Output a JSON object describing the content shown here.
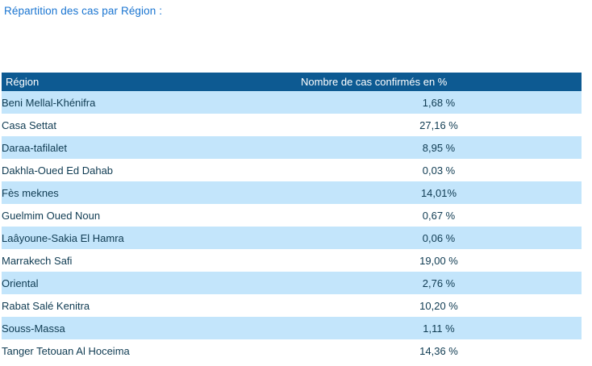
{
  "page": {
    "title": "Répartition des cas par Région :"
  },
  "colors": {
    "title_text": "#1a75d1",
    "header_bg": "#0d5a92",
    "header_text": "#ffffff",
    "row_alt_bg": "#c3e5fb",
    "row_bg": "#ffffff",
    "row_text": "#0f3b52"
  },
  "chart_data": {
    "type": "table",
    "title": "Répartition des cas par Région :",
    "columns": [
      "Région",
      "Nombre de cas confirmés en %"
    ],
    "rows": [
      [
        "Beni Mellal-Khénifra",
        "1,68 %"
      ],
      [
        "Casa Settat",
        "27,16 %"
      ],
      [
        "Daraa-tafilalet",
        "8,95 %"
      ],
      [
        "Dakhla-Oued Ed Dahab",
        "0,03 %"
      ],
      [
        "Fès meknes",
        "14,01%"
      ],
      [
        "Guelmim Oued Noun",
        "0,67 %"
      ],
      [
        "Laâyoune-Sakia El Hamra",
        "0,06 %"
      ],
      [
        "Marrakech Safi",
        "19,00 %"
      ],
      [
        "Oriental",
        "2,76 %"
      ],
      [
        "Rabat Salé Kenitra",
        "10,20 %"
      ],
      [
        "Souss-Massa",
        "1,11 %"
      ],
      [
        "Tanger Tetouan Al Hoceima",
        "14,36 %"
      ]
    ],
    "values_numeric": [
      1.68,
      27.16,
      8.95,
      0.03,
      14.01,
      0.67,
      0.06,
      19.0,
      2.76,
      10.2,
      1.11,
      14.36
    ],
    "value_unit": "%"
  }
}
